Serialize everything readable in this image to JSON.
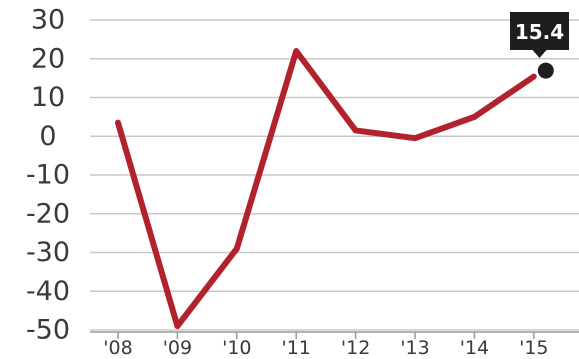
{
  "chart_data": {
    "type": "line",
    "title": "",
    "xlabel": "",
    "ylabel": "",
    "categories": [
      "'08",
      "'09",
      "'10",
      "'11",
      "'12",
      "'13",
      "'14",
      "'15"
    ],
    "series": [
      {
        "values": [
          3.5,
          -49,
          -29,
          22,
          1.5,
          -0.5,
          5,
          15.4
        ]
      }
    ],
    "ylim": [
      -50,
      30
    ],
    "yticks": [
      "30",
      "20",
      "10",
      "0",
      "-10",
      "-20",
      "-30",
      "-40",
      "-50"
    ],
    "grid": true,
    "legend": "none",
    "colors": {
      "line": "#b2222c",
      "grid": "#c8c8c8",
      "callout": "#1e1e1e",
      "text": "#3a3a3a"
    },
    "annotation": {
      "label": "15.4",
      "category": "'15",
      "value": 15.4
    }
  }
}
